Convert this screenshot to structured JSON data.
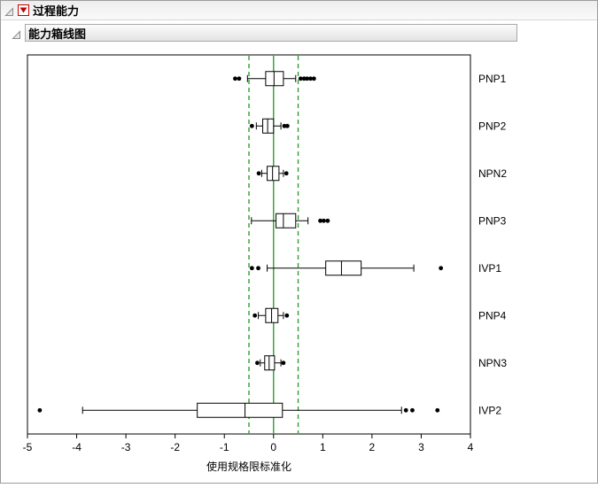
{
  "app": {
    "section1_title": "过程能力",
    "section2_title": "能力箱线图"
  },
  "icons": {
    "disclosure_open": "disclosure-triangle-open",
    "red_triangle_menu": "red-triangle-menu"
  },
  "chart_data": {
    "type": "boxplot",
    "orientation": "horizontal",
    "title": "能力箱线图",
    "xlabel": "使用规格限标准化",
    "xlim": [
      -5,
      4
    ],
    "xticks": [
      -5,
      -4,
      -3,
      -2,
      -1,
      0,
      1,
      2,
      3,
      4
    ],
    "grid": false,
    "reference_lines": [
      {
        "value": 0,
        "style": "solid",
        "color": "#2f9e2f",
        "name": "center-line"
      },
      {
        "value": -0.5,
        "style": "dashed",
        "color": "#2f9e2f",
        "name": "lower-spec-limit-line"
      },
      {
        "value": 0.5,
        "style": "dashed",
        "color": "#2f9e2f",
        "name": "upper-spec-limit-line"
      }
    ],
    "rows": [
      {
        "label": "PNP1",
        "whisker_low": -0.53,
        "q1": -0.16,
        "median": 0.01,
        "q3": 0.2,
        "whisker_high": 0.45,
        "outliers": [
          -0.78,
          -0.7,
          0.55,
          0.62,
          0.68,
          0.75,
          0.82
        ]
      },
      {
        "label": "PNP2",
        "whisker_low": -0.35,
        "q1": -0.22,
        "median": -0.12,
        "q3": 0.0,
        "whisker_high": 0.15,
        "outliers": [
          -0.44,
          0.22,
          0.28
        ]
      },
      {
        "label": "NPN2",
        "whisker_low": -0.24,
        "q1": -0.13,
        "median": -0.02,
        "q3": 0.11,
        "whisker_high": 0.2,
        "outliers": [
          -0.3,
          0.26
        ]
      },
      {
        "label": "PNP3",
        "whisker_low": -0.45,
        "q1": 0.05,
        "median": 0.2,
        "q3": 0.45,
        "whisker_high": 0.7,
        "outliers": [
          0.95,
          1.02,
          1.1
        ]
      },
      {
        "label": "IVP1",
        "whisker_low": -0.13,
        "q1": 1.06,
        "median": 1.38,
        "q3": 1.78,
        "whisker_high": 2.85,
        "outliers": [
          -0.44,
          -0.31,
          3.4
        ]
      },
      {
        "label": "PNP4",
        "whisker_low": -0.31,
        "q1": -0.16,
        "median": -0.04,
        "q3": 0.09,
        "whisker_high": 0.2,
        "outliers": [
          -0.38,
          0.27
        ]
      },
      {
        "label": "NPN3",
        "whisker_low": -0.27,
        "q1": -0.18,
        "median": -0.09,
        "q3": 0.02,
        "whisker_high": 0.15,
        "outliers": [
          -0.33,
          0.2
        ]
      },
      {
        "label": "IVP2",
        "whisker_low": -3.88,
        "q1": -1.55,
        "median": -0.58,
        "q3": 0.18,
        "whisker_high": 2.6,
        "outliers": [
          -4.75,
          2.69,
          2.82,
          3.33
        ]
      }
    ]
  }
}
